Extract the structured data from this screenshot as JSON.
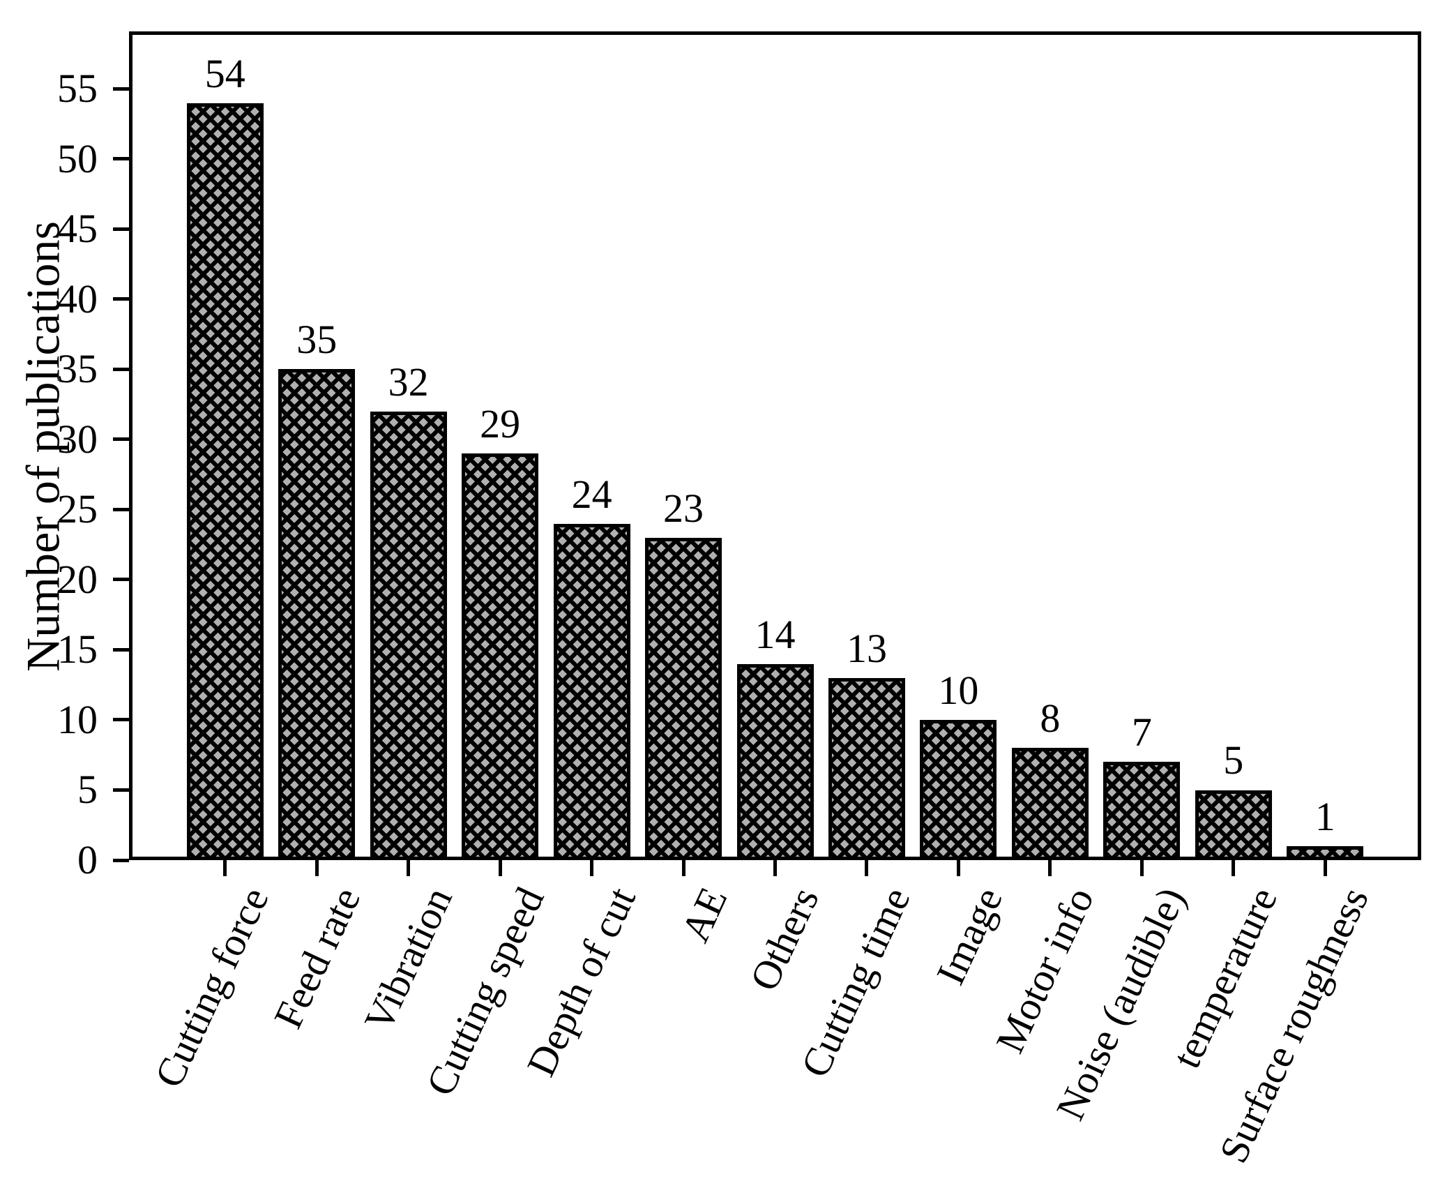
{
  "figure": {
    "background": "#ffffff",
    "text_color": "#000000"
  },
  "chart_data": {
    "type": "bar",
    "title": "",
    "xlabel": "",
    "ylabel": "Number of publications",
    "categories": [
      "Cutting force",
      "Feed rate",
      "Vibration",
      "Cutting speed",
      "Depth of cut",
      "AE",
      "Others",
      "Cutting time",
      "Image",
      "Motor info",
      "Noise (audible)",
      "temperature",
      "Surface roughness"
    ],
    "values": [
      54,
      35,
      32,
      29,
      24,
      23,
      14,
      13,
      10,
      8,
      7,
      5,
      1
    ],
    "bar_value_labels": [
      "54",
      "35",
      "32",
      "29",
      "24",
      "23",
      "14",
      "13",
      "10",
      "8",
      "7",
      "5",
      "1"
    ],
    "ylim": [
      0,
      59.1
    ],
    "yticks": [
      0,
      5,
      10,
      15,
      20,
      25,
      30,
      35,
      40,
      45,
      50,
      55
    ],
    "grid": false,
    "legend": "none",
    "bar_fill_color": "#b0b0b0",
    "bar_edge_color": "#000000",
    "hatch_pattern": "xx-crosshatch",
    "x_tick_label_rotation_deg": 65
  }
}
